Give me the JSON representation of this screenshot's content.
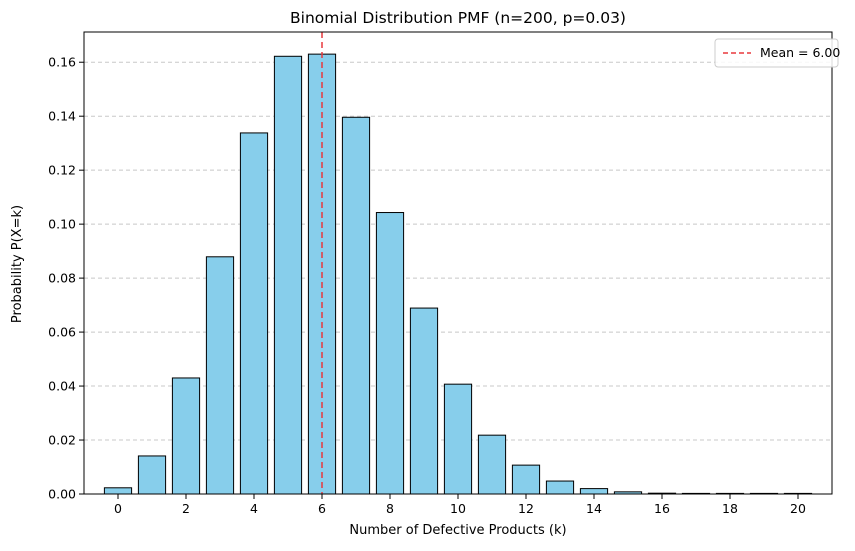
{
  "chart_data": {
    "type": "bar",
    "title": "Binomial Distribution PMF (n=200, p=0.03)",
    "xlabel": "Number of Defective Products (k)",
    "ylabel": "Probability P(X=k)",
    "categories": [
      0,
      1,
      2,
      3,
      4,
      5,
      6,
      7,
      8,
      9,
      10,
      11,
      12,
      13,
      14,
      15,
      16,
      17,
      18,
      19,
      20
    ],
    "values": [
      0.0023,
      0.0141,
      0.043,
      0.0879,
      0.1338,
      0.1622,
      0.163,
      0.1396,
      0.1043,
      0.0689,
      0.0407,
      0.0218,
      0.0107,
      0.0048,
      0.002,
      0.0008,
      0.0003,
      0.0001,
      3e-05,
      1e-05,
      3e-06
    ],
    "xticks": [
      0,
      2,
      4,
      6,
      8,
      10,
      12,
      14,
      16,
      18,
      20
    ],
    "yticks": [
      0.0,
      0.02,
      0.04,
      0.06,
      0.08,
      0.1,
      0.12,
      0.14,
      0.16
    ],
    "xlim": [
      -1,
      21
    ],
    "ylim": [
      0,
      0.1712
    ],
    "grid": "y",
    "bar_color": "#87ceeb",
    "bar_edge_color": "#000000",
    "mean_line": {
      "x": 6.0,
      "label": "Mean = 6.00",
      "color": "#e8383d",
      "style": "dashed"
    },
    "legend": {
      "placement": "top-right",
      "entries": [
        "Mean = 6.00"
      ]
    }
  }
}
